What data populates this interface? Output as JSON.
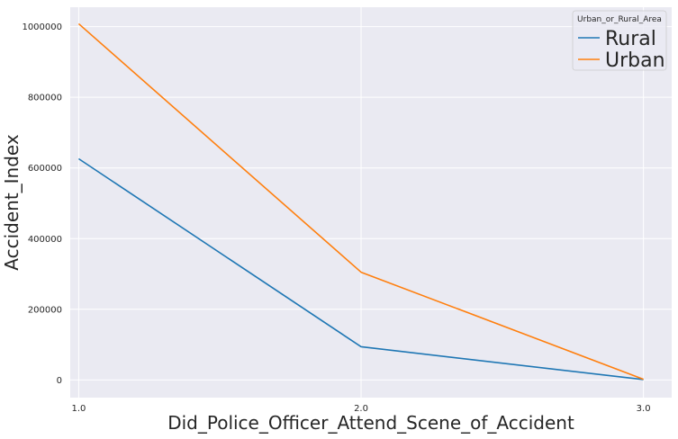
{
  "chart_data": {
    "type": "line",
    "xlabel": "Did_Police_Officer_Attend_Scene_of_Accident",
    "ylabel": "Accident_Index",
    "x": [
      "1.0",
      "2.0",
      "3.0"
    ],
    "xlim": [
      0.97,
      3.1
    ],
    "ylim": [
      -50000,
      1055000
    ],
    "yticks": [
      "0",
      "200000",
      "400000",
      "600000",
      "800000",
      "1000000"
    ],
    "ytick_values": [
      0,
      200000,
      400000,
      600000,
      800000,
      1000000
    ],
    "grid": true,
    "legend": {
      "title": "Urban_or_Rural_Area",
      "placement": "top-right"
    },
    "series": [
      {
        "name": "Rural",
        "color": "#1f77b4",
        "values": [
          626000,
          94000,
          1000
        ]
      },
      {
        "name": "Urban",
        "color": "#ff7f0e",
        "values": [
          1008000,
          305000,
          2000
        ]
      }
    ],
    "background": "#eaeaf2"
  }
}
